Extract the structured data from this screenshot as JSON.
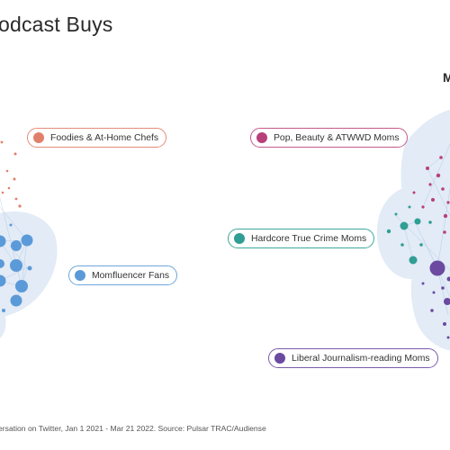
{
  "title": "odcast Buys",
  "corner_letter": "M",
  "footer": "ersation on Twitter, Jan 1 2021 - Mar 21 2022. Source: Pulsar TRAC/Audiense",
  "colors": {
    "foodies": "#e0806a",
    "momfluencer": "#5b9ad8",
    "pop_beauty": "#b8407a",
    "true_crime": "#2f9e93",
    "liberal_journalism": "#6b4aa0"
  },
  "labels": {
    "foodies": "Foodies & At-Home Chefs",
    "momfluencer": "Momfluencer Fans",
    "pop_beauty": "Pop, Beauty & ATWWD Moms",
    "true_crime": "Hardcore True Crime Moms",
    "liberal_journalism": "Liberal Journalism-reading Moms"
  }
}
